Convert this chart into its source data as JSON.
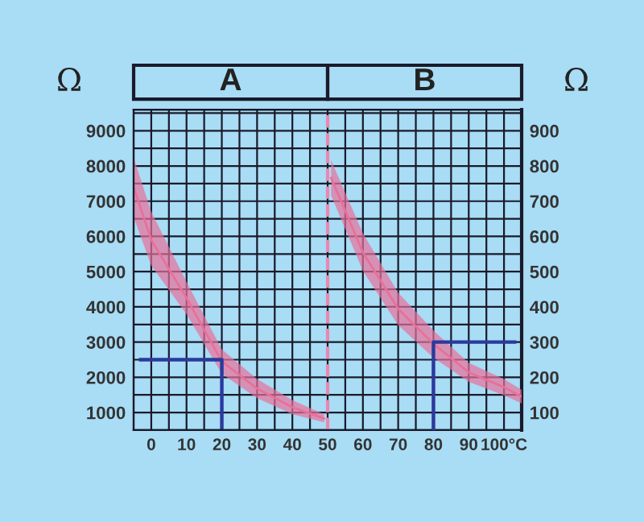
{
  "chart_data": {
    "type": "line",
    "ylabel": "Ω",
    "y2label": "Ω",
    "annotations": [
      "A",
      "B"
    ],
    "xlim": [
      -5,
      105
    ],
    "ylim": [
      500,
      9600
    ],
    "y2lim": [
      50,
      960
    ],
    "xticks": [
      0,
      {
        "value": 5,
        "label": null
      },
      10,
      {
        "value": 15,
        "label": null
      },
      20,
      {
        "value": 25,
        "label": null
      },
      30,
      {
        "value": 35,
        "label": null
      },
      40,
      {
        "value": 45,
        "label": null
      },
      50,
      {
        "value": 55,
        "label": null
      },
      60,
      {
        "value": 65,
        "label": null
      },
      70,
      {
        "value": 75,
        "label": null
      },
      80,
      {
        "value": 85,
        "label": null
      },
      90,
      {
        "value": 95,
        "label": null
      },
      {
        "value": 100,
        "label": "100°C"
      }
    ],
    "yticks": [
      1000,
      {
        "value": 1500,
        "label": null
      },
      2000,
      {
        "value": 2500,
        "label": null
      },
      3000,
      {
        "value": 3500,
        "label": null
      },
      4000,
      {
        "value": 4500,
        "label": null
      },
      5000,
      {
        "value": 5500,
        "label": null
      },
      6000,
      {
        "value": 6500,
        "label": null
      },
      7000,
      {
        "value": 7500,
        "label": null
      },
      8000,
      {
        "value": 8500,
        "label": null
      },
      9000,
      {
        "value": 9500,
        "label": null
      }
    ],
    "y2ticks": [
      100,
      200,
      300,
      400,
      500,
      600,
      700,
      800,
      900
    ],
    "grid": true,
    "marker": "none",
    "line_style": "solid",
    "ref_lines": [
      {
        "axis": "x",
        "value": 50,
        "label": null,
        "color": "#e888b0",
        "line_style": "dashed"
      }
    ],
    "series": [
      {
        "color": "#e8709a",
        "x": [
          -5,
          0,
          10,
          20,
          30,
          40,
          49
        ],
        "values": [
          7400,
          5900,
          4250,
          2450,
          1680,
          1150,
          830
        ],
        "lower": [
          6550,
          5170,
          3790,
          2100,
          1410,
          950,
          720
        ],
        "upper": [
          8240,
          6700,
          4710,
          2790,
          1950,
          1350,
          950
        ]
      },
      {
        "color": "#e8709a",
        "axis": "y2",
        "x": [
          51,
          60,
          70,
          80,
          90,
          100,
          105
        ],
        "values": [
          766,
          555,
          394,
          295,
          214,
          172,
          145
        ],
        "lower": [
          716,
          502,
          348,
          256,
          187,
          149,
          126
        ],
        "upper": [
          816,
          609,
          440,
          333,
          241,
          195,
          164
        ]
      },
      {
        "color": "#2a3a9c",
        "x": [
          20,
          20,
          -3
        ],
        "values": [
          500,
          2500,
          2500
        ]
      },
      {
        "color": "#2a3a9c",
        "axis": "y2",
        "x": [
          80,
          80,
          103
        ],
        "values": [
          50,
          300,
          300
        ]
      }
    ]
  }
}
